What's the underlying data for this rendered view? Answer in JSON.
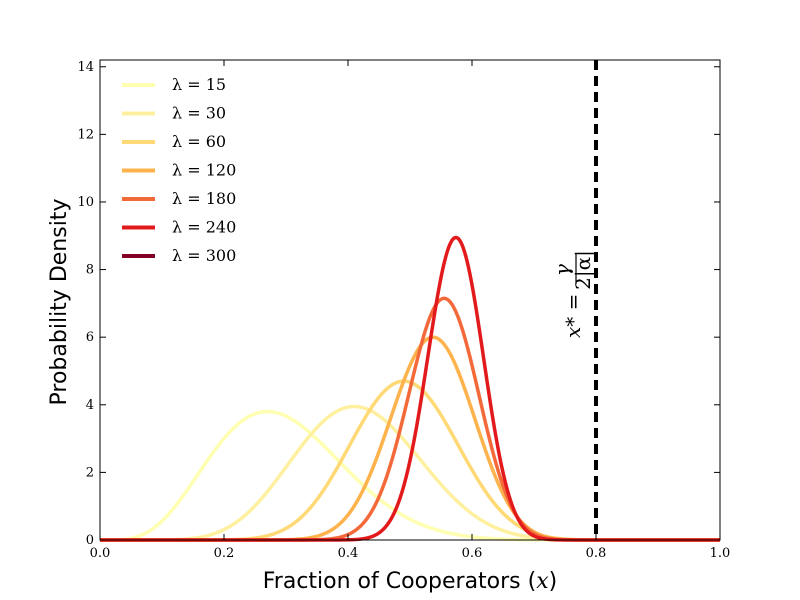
{
  "chart_data": {
    "type": "line",
    "title": "",
    "xlabel": "Fraction of Cooperators (",
    "xlabel_var": "x",
    "xlabel_close": ")",
    "ylabel": "Probability Density",
    "xlim": [
      0.0,
      1.0
    ],
    "ylim": [
      0,
      14.2
    ],
    "xticks": [
      0.0,
      0.2,
      0.4,
      0.6,
      0.8,
      1.0
    ],
    "xtick_labels": [
      "0.0",
      "0.2",
      "0.4",
      "0.6",
      "0.8",
      "1.0"
    ],
    "yticks": [
      0,
      2,
      4,
      6,
      8,
      10,
      12,
      14
    ],
    "ytick_labels": [
      "0",
      "2",
      "4",
      "6",
      "8",
      "10",
      "12",
      "14"
    ],
    "grid": false,
    "legend_position": "top-left",
    "series": [
      {
        "name": "λ = 15",
        "color": "#ffffb2",
        "peak_x": 0.27,
        "peak_y": 3.8
      },
      {
        "name": "λ = 30",
        "color": "#fff0a0",
        "peak_x": 0.41,
        "peak_y": 3.95
      },
      {
        "name": "λ = 60",
        "color": "#fed976",
        "peak_x": 0.49,
        "peak_y": 4.7
      },
      {
        "name": "λ = 120",
        "color": "#feb24c",
        "peak_x": 0.537,
        "peak_y": 6.0
      },
      {
        "name": "λ = 180",
        "color": "#f4693a",
        "peak_x": 0.555,
        "peak_y": 7.15
      },
      {
        "name": "λ = 240",
        "color": "#e31a1c",
        "peak_x": 0.574,
        "peak_y": 8.95
      },
      {
        "name": "λ = 300",
        "color": "#800026",
        "peak_x": null,
        "peak_y": null
      }
    ],
    "reference_line": {
      "x": 0.8,
      "style": "dashed",
      "color": "#000000"
    },
    "annotation": {
      "lhs": "x* =",
      "numerator": "γ",
      "denominator": "2|α|"
    }
  }
}
